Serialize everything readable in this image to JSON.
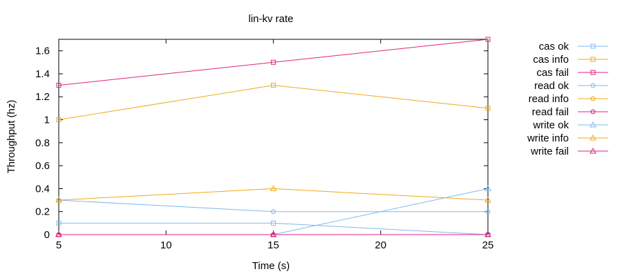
{
  "chart_data": {
    "type": "line",
    "title": "lin-kv rate",
    "xlabel": "Time (s)",
    "ylabel": "Throughput (hz)",
    "xlim": [
      5,
      25
    ],
    "ylim": [
      0,
      1.7
    ],
    "x_ticks": [
      5,
      10,
      15,
      20,
      25
    ],
    "y_ticks": [
      0,
      0.2,
      0.4,
      0.6,
      0.8,
      1,
      1.2,
      1.4,
      1.6
    ],
    "x_tick_labels": [
      "5",
      "10",
      "15",
      "20",
      "25"
    ],
    "y_tick_labels": [
      "0",
      "0.2",
      "0.4",
      "0.6",
      "0.8",
      "1",
      "1.2",
      "1.4",
      "1.6"
    ],
    "grid": false,
    "legend_position": "right",
    "series": [
      {
        "name": "cas ok",
        "color": "#7fb8ef",
        "marker": "square",
        "x": [
          5,
          15,
          25
        ],
        "y": [
          0.1,
          0.1,
          0
        ]
      },
      {
        "name": "cas info",
        "color": "#f0a818",
        "marker": "square",
        "x": [
          5,
          15,
          25
        ],
        "y": [
          1.0,
          1.3,
          1.1
        ]
      },
      {
        "name": "cas fail",
        "color": "#e0207f",
        "marker": "square",
        "x": [
          5,
          15,
          25
        ],
        "y": [
          1.3,
          1.5,
          1.7
        ]
      },
      {
        "name": "read ok",
        "color": "#7fb8ef",
        "marker": "pentagon",
        "x": [
          5,
          15,
          25
        ],
        "y": [
          0.3,
          0.2,
          0.2
        ]
      },
      {
        "name": "read info",
        "color": "#f0a818",
        "marker": "pentagon",
        "x": [
          5,
          15,
          25
        ],
        "y": [
          0,
          0,
          0
        ]
      },
      {
        "name": "read fail",
        "color": "#e0207f",
        "marker": "pentagon",
        "x": [
          5,
          15,
          25
        ],
        "y": [
          0,
          0,
          0
        ]
      },
      {
        "name": "write ok",
        "color": "#7fb8ef",
        "marker": "triangle",
        "x": [
          5,
          15,
          25
        ],
        "y": [
          0,
          0,
          0.4
        ]
      },
      {
        "name": "write info",
        "color": "#f0a818",
        "marker": "triangle",
        "x": [
          5,
          15,
          25
        ],
        "y": [
          0.3,
          0.4,
          0.3
        ]
      },
      {
        "name": "write fail",
        "color": "#e0207f",
        "marker": "triangle",
        "x": [
          5,
          15,
          25
        ],
        "y": [
          0,
          0,
          0
        ]
      }
    ]
  }
}
